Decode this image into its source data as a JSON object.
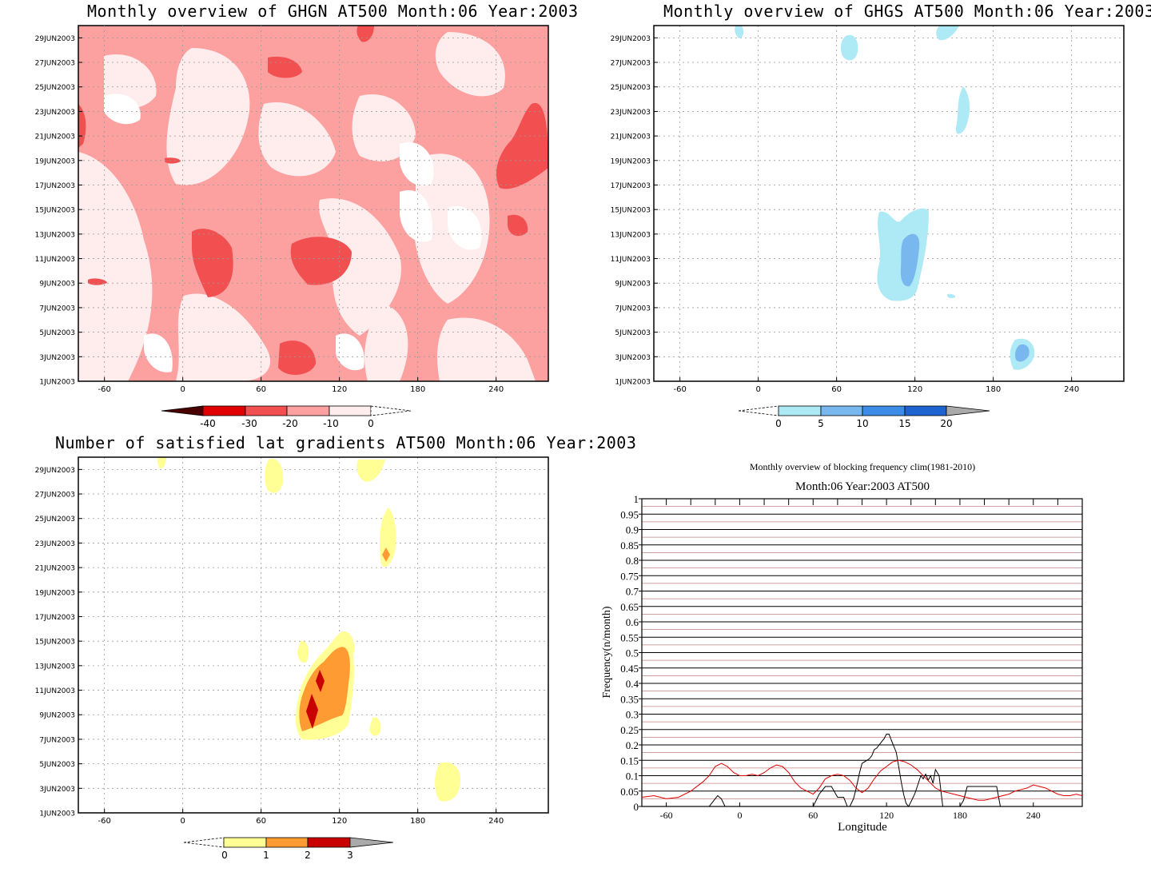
{
  "dates": [
    "1JUN2003",
    "3JUN2003",
    "5JUN2003",
    "7JUN2003",
    "9JUN2003",
    "11JUN2003",
    "13JUN2003",
    "15JUN2003",
    "17JUN2003",
    "19JUN2003",
    "21JUN2003",
    "23JUN2003",
    "25JUN2003",
    "27JUN2003",
    "29JUN2003"
  ],
  "lons": [
    "-60",
    "0",
    "60",
    "120",
    "180",
    "240"
  ],
  "colors": {
    "red_scale": [
      "#4a0000",
      "#e00000",
      "#f25050",
      "#fca0a0",
      "#ffecec"
    ],
    "blue_scale": [
      "#aeeaf5",
      "#78b8ee",
      "#3c8ce8",
      "#1e64d0"
    ],
    "yellow_scale": [
      "#ffff96",
      "#ff9b32",
      "#c80000"
    ],
    "grey": "#aaaaaa"
  },
  "chart_data": [
    {
      "id": "ghgn",
      "type": "heatmap",
      "title": "Monthly overview of GHGN AT500 Month:06 Year:2003",
      "x_ticks": [
        -60,
        0,
        60,
        120,
        180,
        240
      ],
      "xlim": [
        -80,
        280
      ],
      "ylim": [
        "1JUN2003",
        "30JUN2003"
      ],
      "grid": true,
      "colorbar": {
        "labels": [
          "-40",
          "-30",
          "-20",
          "-10",
          "0"
        ]
      }
    },
    {
      "id": "ghgs",
      "type": "heatmap",
      "title": "Monthly overview of GHGS AT500 Month:06 Year:2003",
      "x_ticks": [
        -60,
        0,
        60,
        120,
        180,
        240
      ],
      "xlim": [
        -80,
        280
      ],
      "ylim": [
        "1JUN2003",
        "30JUN2003"
      ],
      "grid": true,
      "colorbar": {
        "labels": [
          "0",
          "5",
          "10",
          "15",
          "20"
        ]
      }
    },
    {
      "id": "latgrad",
      "type": "heatmap",
      "title": "Number of satisfied lat gradients AT500 Month:06 Year:2003",
      "x_ticks": [
        -60,
        0,
        60,
        120,
        180,
        240
      ],
      "xlim": [
        -80,
        280
      ],
      "ylim": [
        "1JUN2003",
        "30JUN2003"
      ],
      "grid": true,
      "colorbar": {
        "labels": [
          "0",
          "1",
          "2",
          "3"
        ]
      }
    },
    {
      "id": "freq",
      "type": "line",
      "title": "Monthly overview of blocking frequency clim(1981-2010)",
      "subtitle": "Month:06 Year:2003  AT500",
      "xlabel": "Longitude",
      "ylabel": "Frequency(n/month)",
      "x_ticks": [
        -60,
        0,
        60,
        120,
        180,
        240
      ],
      "y_ticks": [
        "0",
        "0.05",
        "0.1",
        "0.15",
        "0.2",
        "0.25",
        "0.3",
        "0.35",
        "0.4",
        "0.45",
        "0.5",
        "0.55",
        "0.6",
        "0.65",
        "0.7",
        "0.75",
        "0.8",
        "0.85",
        "0.9",
        "0.95",
        "1"
      ],
      "xlim": [
        -80,
        280
      ],
      "ylim": [
        0,
        1
      ],
      "series": [
        {
          "color": "#000000",
          "x": [
            -80,
            -25,
            -22,
            -18,
            -15,
            -12,
            60,
            65,
            70,
            75,
            80,
            85,
            88,
            90,
            93,
            95,
            98,
            100,
            102,
            104,
            106,
            108,
            110,
            112,
            114,
            116,
            118,
            120,
            122,
            124,
            128,
            132,
            134,
            136,
            138,
            140,
            143,
            146,
            148,
            150,
            152,
            154,
            156,
            158,
            160,
            163,
            166,
            180,
            183,
            186,
            192,
            195,
            198,
            205,
            210,
            213,
            280
          ],
          "y": [
            0,
            0,
            0.015,
            0.035,
            0.025,
            0,
            0,
            0.04,
            0.065,
            0.065,
            0.03,
            0.03,
            0,
            0,
            0.025,
            0.055,
            0.11,
            0.14,
            0.145,
            0.15,
            0.155,
            0.165,
            0.185,
            0.19,
            0.2,
            0.21,
            0.22,
            0.235,
            0.235,
            0.215,
            0.175,
            0.08,
            0.04,
            0.01,
            0,
            0.015,
            0.04,
            0.075,
            0.1,
            0.09,
            0.105,
            0.085,
            0.1,
            0.075,
            0.12,
            0.1,
            0,
            0,
            0.02,
            0.065,
            0.065,
            0.065,
            0.065,
            0.065,
            0.065,
            0,
            0
          ]
        },
        {
          "color": "#e00000",
          "x": [
            -80,
            -70,
            -60,
            -50,
            -40,
            -30,
            -25,
            -20,
            -15,
            -10,
            -5,
            0,
            5,
            10,
            15,
            20,
            25,
            30,
            35,
            40,
            45,
            50,
            55,
            60,
            65,
            70,
            75,
            80,
            85,
            90,
            95,
            100,
            105,
            110,
            115,
            120,
            125,
            130,
            135,
            140,
            145,
            150,
            155,
            160,
            165,
            170,
            175,
            180,
            185,
            190,
            195,
            200,
            205,
            210,
            215,
            220,
            225,
            230,
            235,
            240,
            245,
            250,
            255,
            260,
            265,
            270,
            275,
            280
          ],
          "y": [
            0.03,
            0.035,
            0.025,
            0.03,
            0.05,
            0.08,
            0.1,
            0.13,
            0.14,
            0.13,
            0.11,
            0.1,
            0.1,
            0.105,
            0.1,
            0.11,
            0.125,
            0.135,
            0.13,
            0.11,
            0.08,
            0.06,
            0.05,
            0.04,
            0.06,
            0.09,
            0.1,
            0.105,
            0.1,
            0.085,
            0.06,
            0.045,
            0.06,
            0.09,
            0.115,
            0.13,
            0.145,
            0.15,
            0.145,
            0.135,
            0.12,
            0.1,
            0.08,
            0.06,
            0.05,
            0.045,
            0.04,
            0.035,
            0.03,
            0.025,
            0.02,
            0.02,
            0.025,
            0.03,
            0.035,
            0.04,
            0.05,
            0.055,
            0.06,
            0.07,
            0.065,
            0.06,
            0.05,
            0.04,
            0.035,
            0.035,
            0.04,
            0.035
          ]
        }
      ]
    }
  ]
}
